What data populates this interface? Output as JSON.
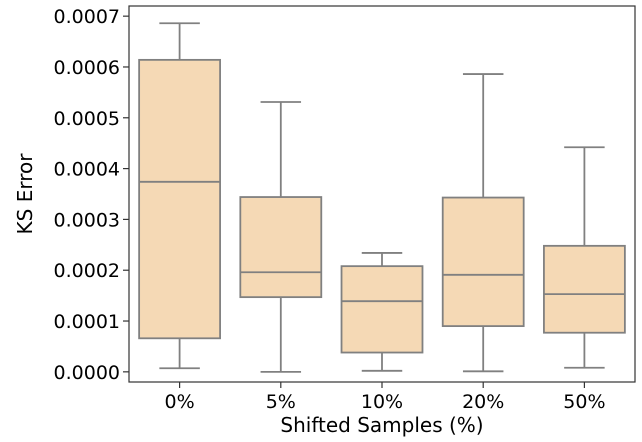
{
  "chart_data": {
    "type": "box",
    "title": "",
    "xlabel": "Shifted  Samples (%)",
    "ylabel": "KS  Error",
    "ylim": [
      -2e-05,
      0.00072
    ],
    "yticks": [
      "0.0000",
      "0.0001",
      "0.0002",
      "0.0003",
      "0.0004",
      "0.0005",
      "0.0006",
      "0.0007"
    ],
    "ytick_values": [
      0,
      0.0001,
      0.0002,
      0.0003,
      0.0004,
      0.0005,
      0.0006,
      0.0007
    ],
    "grid": false,
    "legend": "none",
    "colors": {
      "box_fill": "#f5d9b5",
      "line": "#808080",
      "frame": "#333333"
    },
    "categories": [
      "0%",
      "5%",
      "10%",
      "20%",
      "50%"
    ],
    "boxes": [
      {
        "category": "0%",
        "whisker_low": 7e-06,
        "q1": 6.6e-05,
        "median": 0.000374,
        "q3": 0.000614,
        "whisker_high": 0.000686
      },
      {
        "category": "5%",
        "whisker_low": 0.0,
        "q1": 0.000147,
        "median": 0.000196,
        "q3": 0.000344,
        "whisker_high": 0.000531
      },
      {
        "category": "10%",
        "whisker_low": 2e-06,
        "q1": 3.8e-05,
        "median": 0.000139,
        "q3": 0.000208,
        "whisker_high": 0.000234
      },
      {
        "category": "20%",
        "whisker_low": 1e-06,
        "q1": 9e-05,
        "median": 0.000191,
        "q3": 0.000343,
        "whisker_high": 0.000586
      },
      {
        "category": "50%",
        "whisker_low": 8e-06,
        "q1": 7.7e-05,
        "median": 0.000153,
        "q3": 0.000248,
        "whisker_high": 0.000442
      }
    ]
  }
}
